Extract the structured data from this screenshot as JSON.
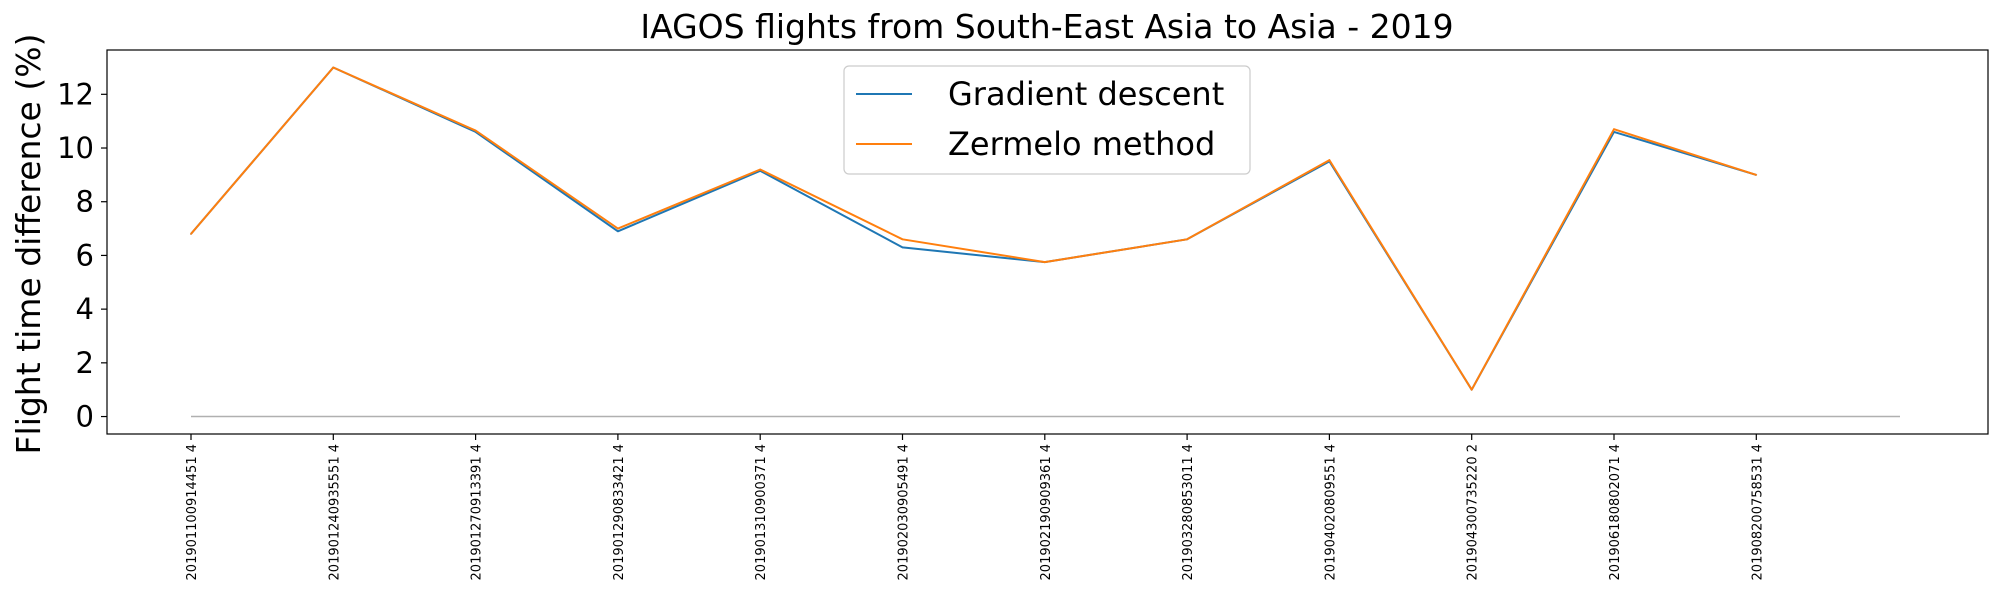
{
  "chart_data": {
    "type": "line",
    "title": "IAGOS flights from South-East Asia to Asia - 2019",
    "xlabel": "",
    "ylabel": "Flight time difference (%)",
    "categories": [
      "201901100914451 4",
      "201901240935551 4",
      "201901270913391 4",
      "201901290833421 4",
      "201901310900371 4",
      "201902030905491 4",
      "201902190909361 4",
      "201903280853011 4",
      "201904020809551 4",
      "201904300735220 2",
      "201906180802071 4",
      "201908200758531 4"
    ],
    "series": [
      {
        "name": "Gradient descent",
        "color": "#1f77b4",
        "values": [
          6.8,
          13.0,
          10.6,
          6.9,
          9.15,
          6.3,
          5.75,
          6.6,
          9.5,
          1.0,
          10.6,
          9.0
        ]
      },
      {
        "name": "Zermelo method",
        "color": "#ff7f0e",
        "values": [
          6.8,
          13.0,
          10.65,
          7.0,
          9.2,
          6.6,
          5.75,
          6.6,
          9.55,
          1.0,
          10.7,
          9.0
        ]
      }
    ],
    "baseline": {
      "value": 0,
      "color": "#b0b0b0"
    },
    "ylim": [
      -0.65,
      13.65
    ],
    "yticks": [
      0,
      2,
      4,
      6,
      8,
      10,
      12
    ],
    "grid": false,
    "legend": "top-center"
  }
}
